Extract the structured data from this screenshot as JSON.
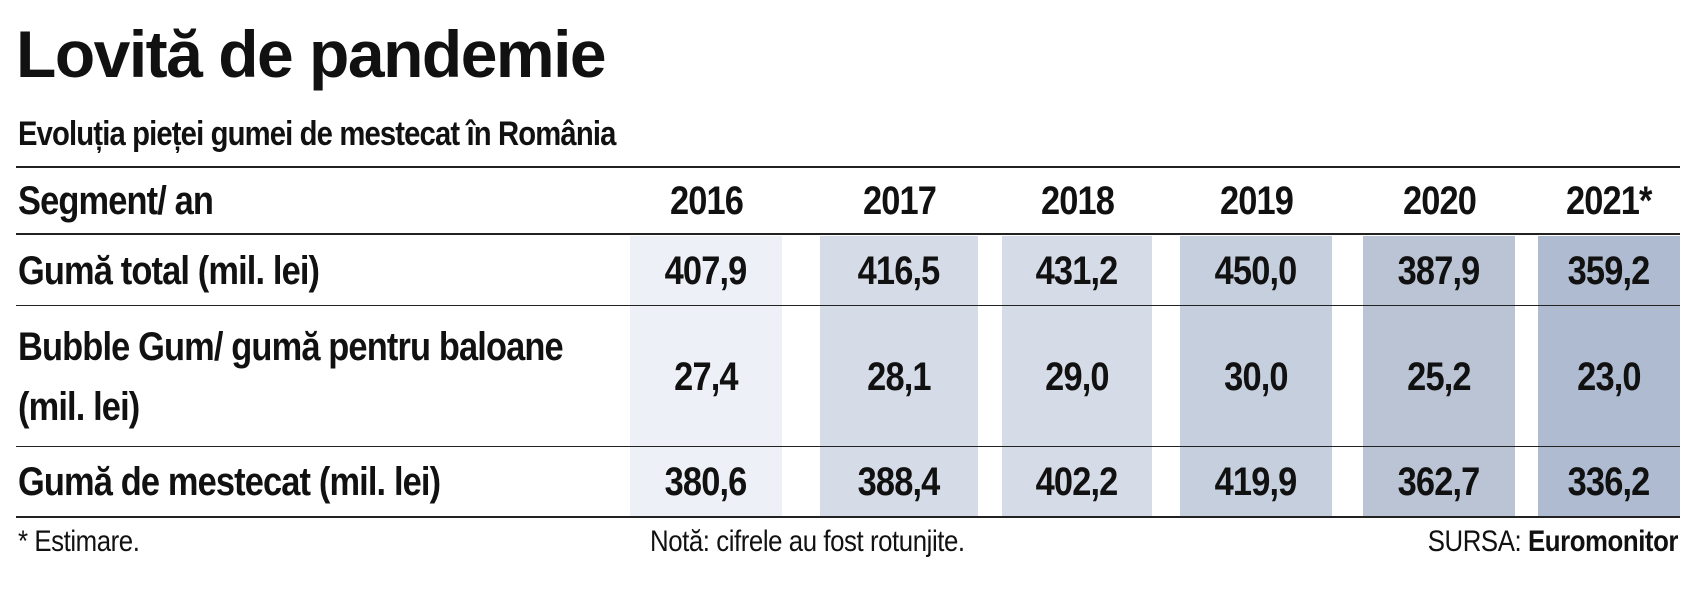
{
  "title": "Lovită de pandemie",
  "subtitle": "Evoluția pieței  gumei de mestecat în România",
  "footer": {
    "note_left": "* Estimare.",
    "note_center": "Notă: cifrele au fost rotunjite.",
    "source_prefix": "SURSA:",
    "source_name": "Euromonitor"
  },
  "colors": {
    "col_2016": "#edf0f6",
    "col_2017": "#d6dce7",
    "col_2018": "#d6dce7",
    "col_2019": "#c6cfdd",
    "col_2020": "#bac4d5",
    "col_2021": "#aebbd0",
    "rule": "#222222"
  },
  "chart_data": {
    "type": "table",
    "header_label": "Segment/ an",
    "columns": [
      "2016",
      "2017",
      "2018",
      "2019",
      "2020",
      "2021*"
    ],
    "rows": [
      {
        "label": "Gumă total (mil. lei)",
        "values": [
          "407,9",
          "416,5",
          "431,2",
          "450,0",
          "387,9",
          "359,2"
        ]
      },
      {
        "label": "Bubble Gum/ gumă pentru baloane (mil. lei)",
        "values": [
          "27,4",
          "28,1",
          "29,0",
          "30,0",
          "25,2",
          "23,0"
        ]
      },
      {
        "label": "Gumă de mestecat (mil. lei)",
        "values": [
          "380,6",
          "388,4",
          "402,2",
          "419,9",
          "362,7",
          "336,2"
        ]
      }
    ]
  }
}
